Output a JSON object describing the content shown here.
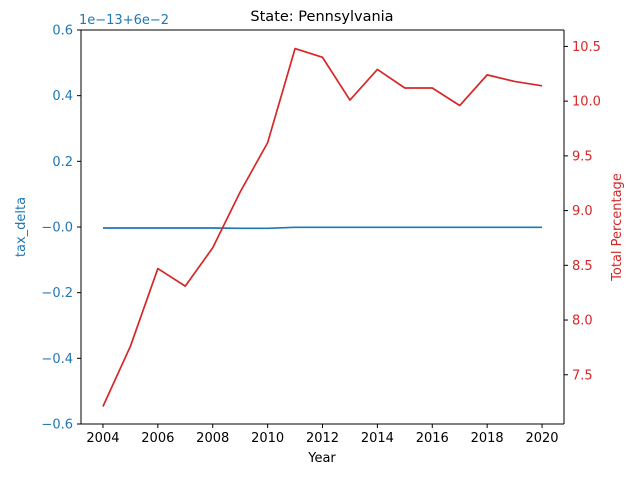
{
  "chart_data": {
    "type": "line",
    "title": "State: Pennsylvania",
    "xlabel": "Year",
    "x": [
      2004,
      2005,
      2006,
      2007,
      2008,
      2009,
      2010,
      2011,
      2012,
      2013,
      2014,
      2015,
      2016,
      2017,
      2018,
      2019,
      2020
    ],
    "x_ticks": [
      2004,
      2006,
      2008,
      2010,
      2012,
      2014,
      2016,
      2018,
      2020
    ],
    "x_tick_labels": [
      "2004",
      "2006",
      "2008",
      "2010",
      "2012",
      "2014",
      "2016",
      "2018",
      "2020"
    ],
    "left_axis": {
      "label": "tax_delta",
      "color": "#1f77b4",
      "offset_text": "1e−13+6e−2",
      "ylim": [
        -0.6,
        0.6
      ],
      "ticks": [
        -0.6,
        -0.4,
        -0.2,
        0.0,
        0.2,
        0.4,
        0.6
      ],
      "tick_labels": [
        "−0.6",
        "−0.4",
        "−0.2",
        "−0.0",
        "0.2",
        "0.4",
        "0.6"
      ],
      "values": [
        -0.003,
        -0.003,
        -0.003,
        -0.003,
        -0.003,
        -0.004,
        -0.004,
        -0.001,
        -0.001,
        -0.001,
        -0.001,
        -0.001,
        -0.001,
        -0.001,
        -0.001,
        -0.001,
        -0.001
      ]
    },
    "right_axis": {
      "label": "Total Percentage",
      "color": "#d62728",
      "ylim": [
        7.05,
        10.65
      ],
      "ticks": [
        7.5,
        8.0,
        8.5,
        9.0,
        9.5,
        10.0,
        10.5
      ],
      "tick_labels": [
        "7.5",
        "8.0",
        "8.5",
        "9.0",
        "9.5",
        "10.0",
        "10.5"
      ],
      "values": [
        7.21,
        7.76,
        8.47,
        8.31,
        8.66,
        9.17,
        9.62,
        10.48,
        10.4,
        10.01,
        10.29,
        10.12,
        10.12,
        9.96,
        10.24,
        10.18,
        10.14
      ]
    }
  }
}
